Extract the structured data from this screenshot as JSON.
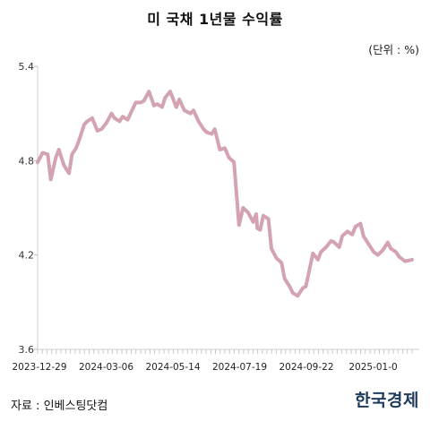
{
  "header": {
    "title": "미 국채 1년물 수익률",
    "unit": "(단위 : %)"
  },
  "footer": {
    "source": "자료 : 인베스팅닷컴",
    "brand": "한국경제"
  },
  "chart_data": {
    "type": "line",
    "title": "미 국채 1년물 수익률",
    "ylabel": "",
    "xlabel": "",
    "ylim": [
      3.6,
      5.4
    ],
    "yticks": [
      3.6,
      4.2,
      4.8,
      5.4
    ],
    "ytick_labels": [
      "3.6",
      "4.2",
      "4.8",
      "5.4"
    ],
    "xtick_labels": [
      "2023-12-29",
      "2024-03-06",
      "2024-05-14",
      "2024-07-19",
      "2024-09-22",
      "2025-01-0"
    ],
    "grid": false,
    "color": "#d4a3b1",
    "series": [
      {
        "x": [
          "2023-12-29",
          "2024-01-03",
          "2024-01-08",
          "2024-01-11",
          "2024-01-16",
          "2024-01-19",
          "2024-01-24",
          "2024-01-29",
          "2024-02-01",
          "2024-02-05",
          "2024-02-08",
          "2024-02-13",
          "2024-02-16",
          "2024-02-21",
          "2024-02-26",
          "2024-03-01",
          "2024-03-06",
          "2024-03-11",
          "2024-03-14",
          "2024-03-19",
          "2024-03-22",
          "2024-03-27",
          "2024-04-01",
          "2024-04-04",
          "2024-04-09",
          "2024-04-12",
          "2024-04-17",
          "2024-04-22",
          "2024-04-25",
          "2024-04-30",
          "2024-05-03",
          "2024-05-08",
          "2024-05-14",
          "2024-05-17",
          "2024-05-22",
          "2024-05-28",
          "2024-05-31",
          "2024-06-05",
          "2024-06-10",
          "2024-06-13",
          "2024-06-18",
          "2024-06-21",
          "2024-06-26",
          "2024-07-01",
          "2024-07-05",
          "2024-07-10",
          "2024-07-15",
          "2024-07-19",
          "2024-07-24",
          "2024-07-29",
          "2024-08-01",
          "2024-08-02",
          "2024-08-05",
          "2024-08-08",
          "2024-08-13",
          "2024-08-16",
          "2024-08-21",
          "2024-08-26",
          "2024-08-29",
          "2024-09-03",
          "2024-09-06",
          "2024-09-11",
          "2024-09-16",
          "2024-09-19",
          "2024-09-22",
          "2024-09-26",
          "2024-10-01",
          "2024-10-04",
          "2024-10-09",
          "2024-10-14",
          "2024-10-17",
          "2024-10-22",
          "2024-10-25",
          "2024-10-30",
          "2024-11-04",
          "2024-11-07",
          "2024-11-12",
          "2024-11-15",
          "2024-11-20",
          "2024-11-25",
          "2024-11-29",
          "2024-12-04",
          "2024-12-09",
          "2024-12-12",
          "2024-12-17",
          "2024-12-20",
          "2024-12-26",
          "2025-01-02"
        ],
        "values": [
          4.79,
          4.85,
          4.84,
          4.68,
          4.82,
          4.87,
          4.77,
          4.72,
          4.84,
          4.88,
          4.93,
          5.03,
          5.05,
          5.07,
          4.99,
          5.0,
          5.04,
          5.1,
          5.07,
          5.05,
          5.08,
          5.06,
          5.13,
          5.17,
          5.17,
          5.18,
          5.24,
          5.15,
          5.16,
          5.14,
          5.2,
          5.24,
          5.14,
          5.19,
          5.12,
          5.1,
          5.12,
          5.05,
          5.0,
          4.98,
          4.97,
          5.0,
          4.87,
          4.88,
          4.82,
          4.79,
          4.39,
          4.5,
          4.47,
          4.41,
          4.46,
          4.37,
          4.36,
          4.45,
          4.43,
          4.24,
          4.18,
          4.15,
          4.05,
          4.0,
          3.96,
          3.94,
          3.99,
          4.0,
          4.09,
          4.21,
          4.17,
          4.22,
          4.25,
          4.29,
          4.28,
          4.25,
          4.32,
          4.35,
          4.33,
          4.38,
          4.4,
          4.32,
          4.27,
          4.22,
          4.2,
          4.23,
          4.28,
          4.24,
          4.22,
          4.19,
          4.16,
          4.17
        ]
      }
    ]
  }
}
